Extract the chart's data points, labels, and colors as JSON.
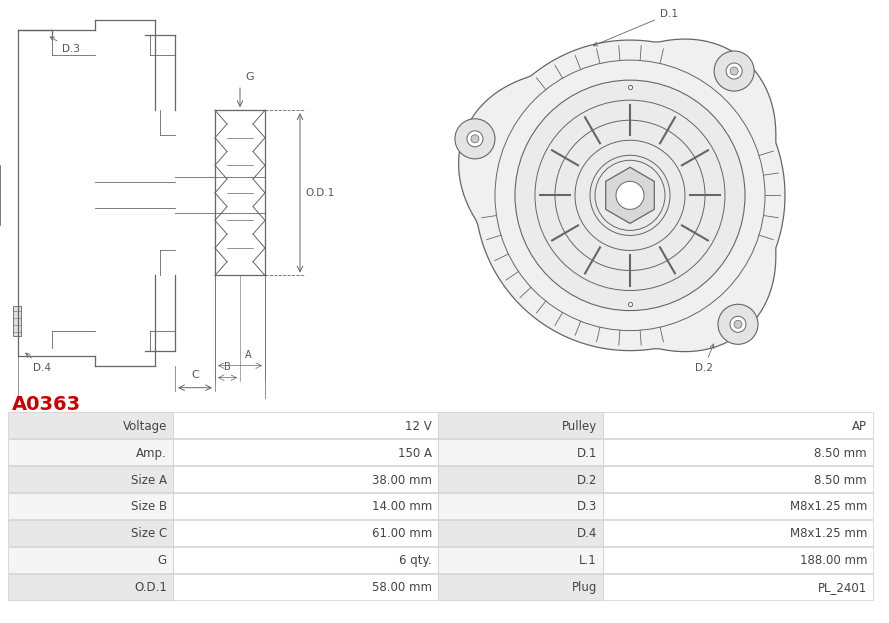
{
  "title": "A0363",
  "title_color": "#cc0000",
  "table_headers_left": [
    "Voltage",
    "Amp.",
    "Size A",
    "Size B",
    "Size C",
    "G",
    "O.D.1"
  ],
  "table_values_left": [
    "12 V",
    "150 A",
    "38.00 mm",
    "14.00 mm",
    "61.00 mm",
    "6 qty.",
    "58.00 mm"
  ],
  "table_headers_right": [
    "Pulley",
    "D.1",
    "D.2",
    "D.3",
    "D.4",
    "L.1",
    "Plug"
  ],
  "table_values_right": [
    "AP",
    "8.50 mm",
    "8.50 mm",
    "M8x1.25 mm",
    "M8x1.25 mm",
    "188.00 mm",
    "PL_2401"
  ],
  "bg_color": "#ffffff",
  "row_color_odd": "#e8e8e8",
  "row_color_even": "#f5f5f5",
  "border_color": "#cccccc",
  "text_color": "#444444",
  "label_color": "#555555",
  "line_color": "#666666"
}
